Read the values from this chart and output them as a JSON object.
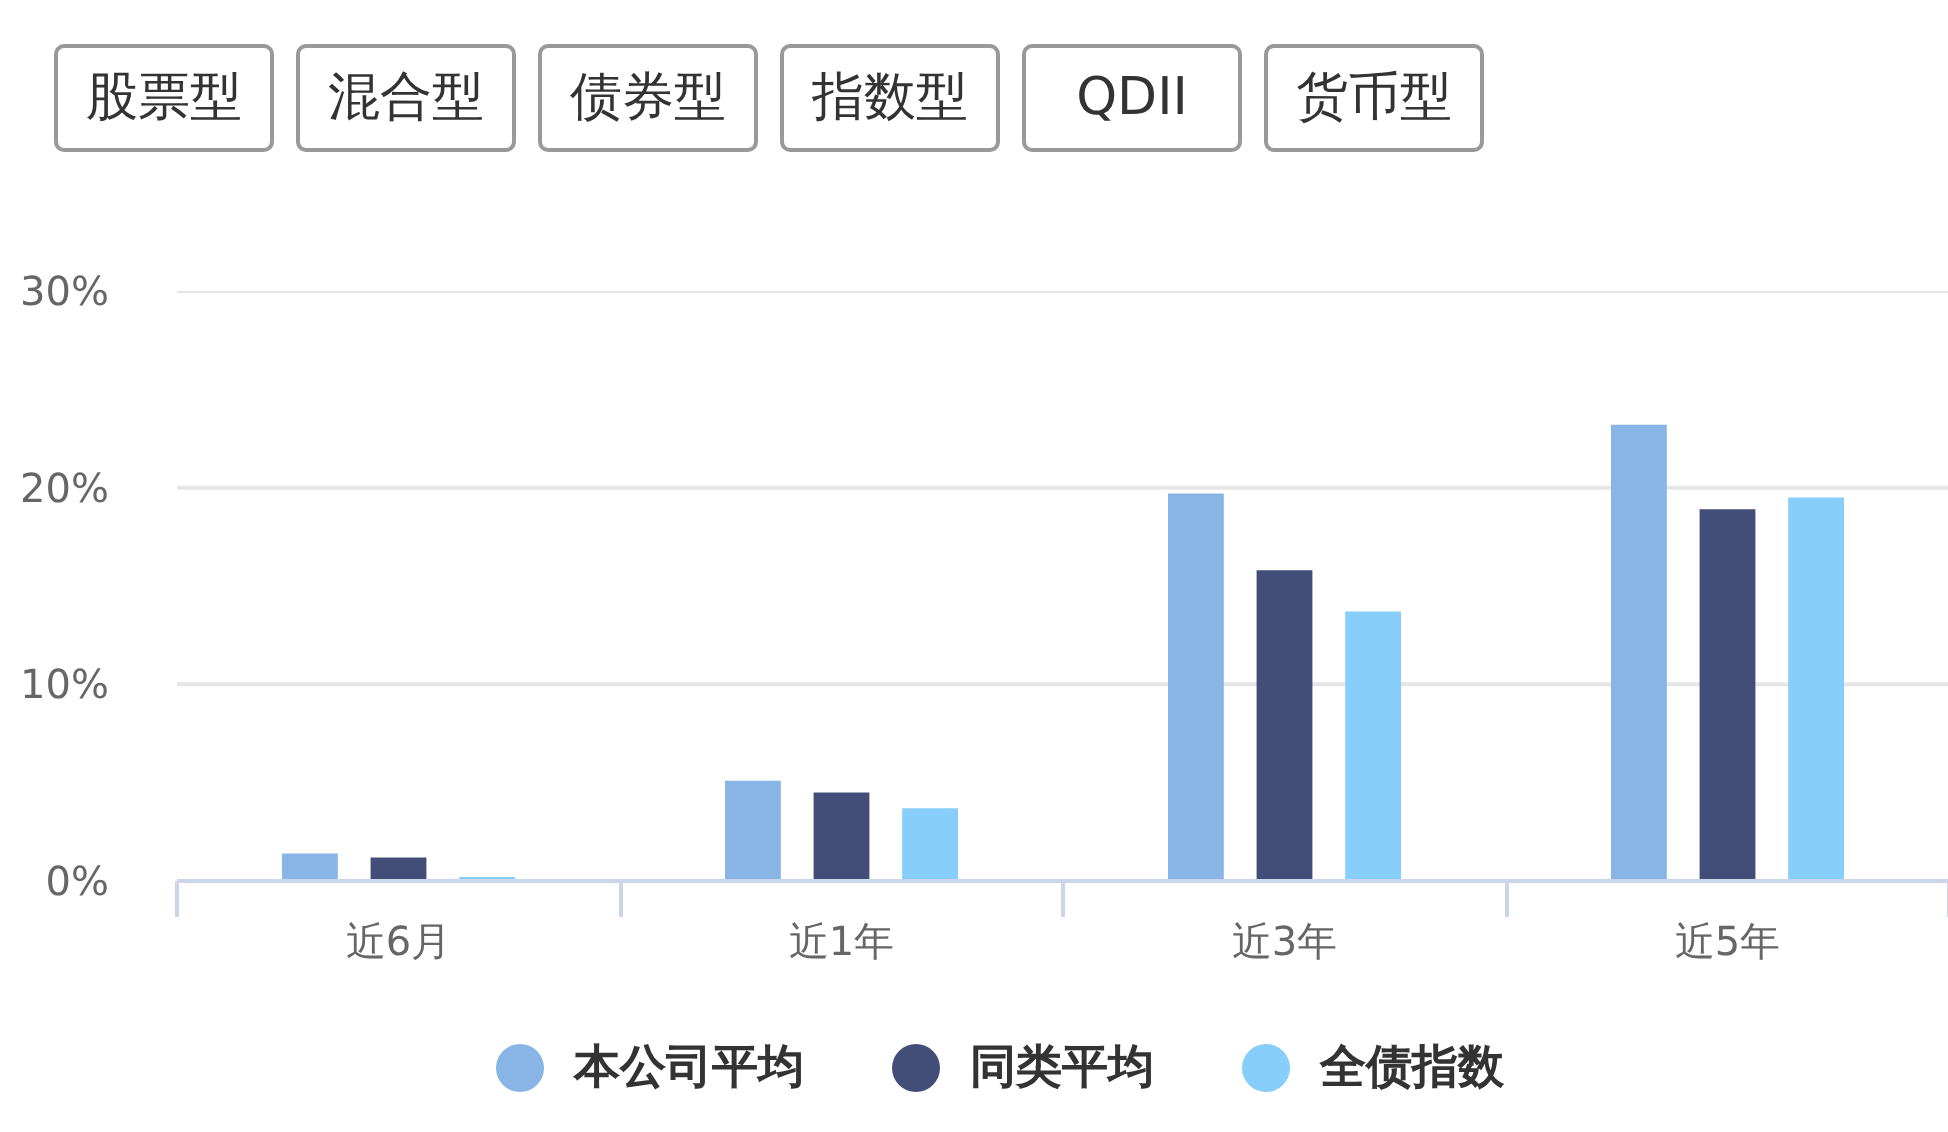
{
  "chart_data": {
    "type": "bar",
    "annotations": [
      "股票型",
      "混合型",
      "债券型",
      "指数型",
      "QDII",
      "货币型"
    ],
    "categories": [
      "近6月",
      "近1年",
      "近3年",
      "近5年"
    ],
    "series": [
      {
        "name": "本公司平均",
        "color": "#88b4e6",
        "values": [
          1.4,
          5.1,
          19.7,
          23.2
        ]
      },
      {
        "name": "同类平均",
        "color": "#434e78",
        "values": [
          1.2,
          4.5,
          15.8,
          18.9
        ]
      },
      {
        "name": "全债指数",
        "color": "#87cefa",
        "values": [
          0.2,
          3.7,
          13.7,
          19.5
        ]
      }
    ],
    "ylim": [
      0,
      30
    ],
    "yticks": [
      {
        "value": 0,
        "label": "0%"
      },
      {
        "value": 10,
        "label": "10%"
      },
      {
        "value": 20,
        "label": "20%"
      },
      {
        "value": 30,
        "label": "30%"
      }
    ],
    "grid": "y",
    "legend": "bottom"
  }
}
